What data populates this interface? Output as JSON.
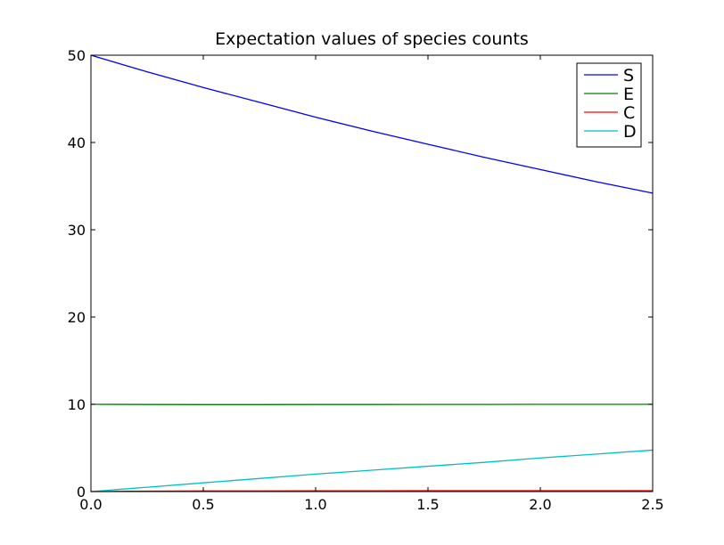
{
  "chart_data": {
    "type": "line",
    "title": "Expectation values of species counts",
    "xlabel": "",
    "ylabel": "",
    "xlim": [
      0.0,
      2.5
    ],
    "ylim": [
      0,
      50
    ],
    "x_ticks": [
      "0.0",
      "0.5",
      "1.0",
      "1.5",
      "2.0",
      "2.5"
    ],
    "y_ticks": [
      "0",
      "10",
      "20",
      "30",
      "40",
      "50"
    ],
    "grid": false,
    "legend_position": "top-right",
    "x": [
      0.0,
      0.25,
      0.5,
      0.75,
      1.0,
      1.25,
      1.5,
      1.75,
      2.0,
      2.25,
      2.5
    ],
    "series": [
      {
        "name": "S",
        "color": "#0000ff",
        "values": [
          50.0,
          48.1,
          46.3,
          44.6,
          42.9,
          41.3,
          39.8,
          38.3,
          36.9,
          35.5,
          34.2
        ]
      },
      {
        "name": "E",
        "color": "#008000",
        "values": [
          10.0,
          9.98,
          9.97,
          9.97,
          9.98,
          9.98,
          9.99,
          9.99,
          10.0,
          10.0,
          10.0
        ]
      },
      {
        "name": "C",
        "color": "#ff0000",
        "values": [
          0.0,
          0.05,
          0.07,
          0.08,
          0.09,
          0.09,
          0.1,
          0.1,
          0.1,
          0.1,
          0.1
        ]
      },
      {
        "name": "D",
        "color": "#00bfbf",
        "values": [
          0.0,
          0.5,
          1.0,
          1.5,
          2.0,
          2.45,
          2.9,
          3.35,
          3.85,
          4.3,
          4.75
        ]
      }
    ]
  }
}
